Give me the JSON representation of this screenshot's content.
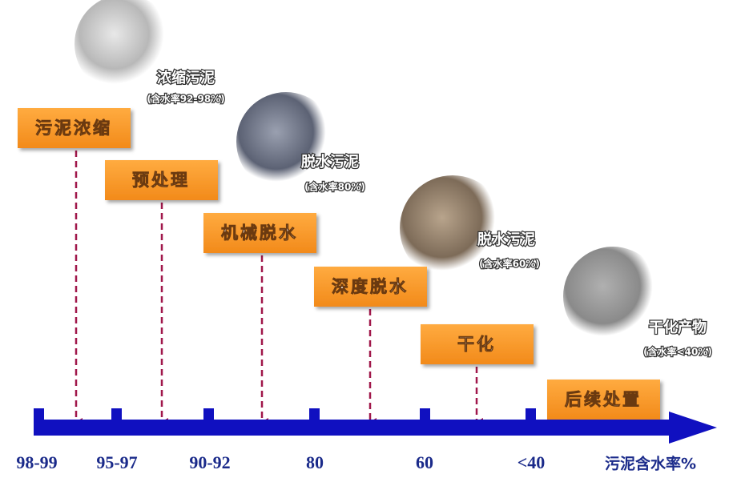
{
  "steps": [
    "污泥浓缩",
    "预处理",
    "机械脱水",
    "深度脱水",
    "干化",
    "后续处置"
  ],
  "materials": [
    {
      "name": "浓缩污泥",
      "note": "(含水率92-98%)"
    },
    {
      "name": "脱水污泥",
      "note": "(含水率80%)"
    },
    {
      "name": "脱水污泥",
      "note": "(含水率60%)"
    },
    {
      "name": "干化产物",
      "note": "(含水率<40%)"
    }
  ],
  "axis": {
    "labels": [
      "98-99",
      "95-97",
      "90-92",
      "80",
      "60",
      "<40"
    ],
    "title": "污泥含水率%"
  }
}
